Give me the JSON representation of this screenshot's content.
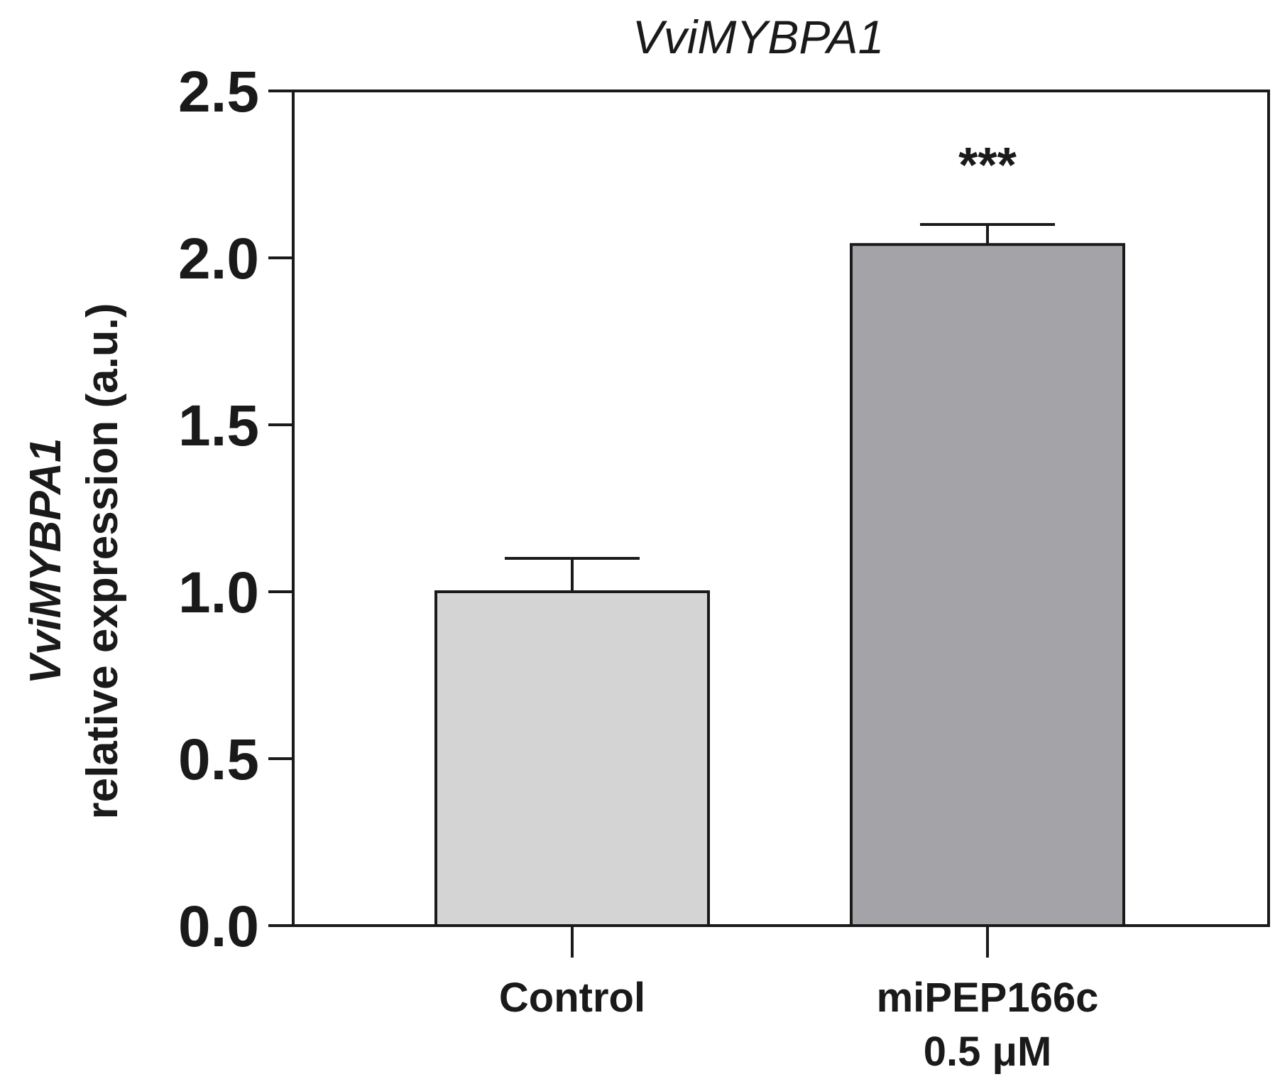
{
  "chart_data": {
    "type": "bar",
    "title": "VviMYBPA1",
    "ylabel_line1": "VviMYBPA1",
    "ylabel_line2": "relative expression (a.u.)",
    "xlabel": "",
    "ylim": [
      0,
      2.5
    ],
    "yticks": [
      "0.0",
      "0.5",
      "1.0",
      "1.5",
      "2.0",
      "2.5"
    ],
    "ytick_values": [
      0,
      0.5,
      1.0,
      1.5,
      2.0,
      2.5
    ],
    "categories": [
      {
        "line1": "Control",
        "line2": ""
      },
      {
        "line1": "miPEP166c",
        "line2": "0.5 μM"
      }
    ],
    "values": [
      1.0,
      2.04
    ],
    "errors": [
      0.1,
      0.06
    ],
    "annotations": [
      "",
      "***"
    ],
    "colors": [
      "#d4d4d4",
      "#a3a3a8"
    ],
    "grid": false,
    "legend": "none"
  }
}
